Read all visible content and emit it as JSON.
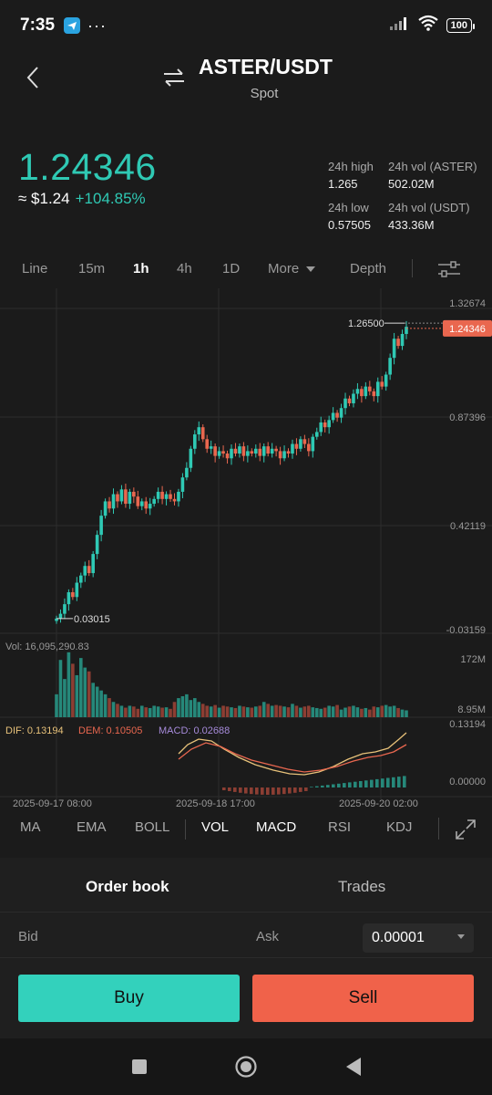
{
  "status": {
    "time": "7:35",
    "dots": "···",
    "battery": "100"
  },
  "header": {
    "pair": "ASTER/USDT",
    "market": "Spot"
  },
  "ticker": {
    "price": "1.24346",
    "approx": "≈ $1.24",
    "change": "+104.85%",
    "high_label": "24h high",
    "high": "1.265",
    "low_label": "24h low",
    "low": "0.57505",
    "vol_base_label": "24h vol (ASTER)",
    "vol_base": "502.02M",
    "vol_quote_label": "24h vol (USDT)",
    "vol_quote": "433.36M"
  },
  "timeframes": [
    "Line",
    "15m",
    "1h",
    "4h",
    "1D",
    "More",
    "Depth"
  ],
  "active_timeframe": "1h",
  "chart_data": {
    "type": "candlestick",
    "price_axis_labels": [
      "1.32674",
      "0.87396",
      "0.42119",
      "-0.03159"
    ],
    "current_price_tag": "1.24346",
    "high_marker": "1.26500",
    "low_marker": "0.03015",
    "volume_label": "Vol: 16,095,290.83",
    "volume_axis": [
      "172M",
      "8.95M"
    ],
    "macd": {
      "dif_label": "DIF: 0.13194",
      "dem_label": "DEM: 0.10505",
      "macd_label": "MACD: 0.02688"
    },
    "macd_axis": [
      "0.13194",
      "0.00000"
    ],
    "time_labels": [
      "2025-09-17 08:00",
      "2025-09-18 17:00",
      "2025-09-20 02:00"
    ],
    "closes": [
      0.03,
      0.05,
      0.09,
      0.14,
      0.12,
      0.18,
      0.21,
      0.25,
      0.22,
      0.3,
      0.38,
      0.46,
      0.52,
      0.49,
      0.55,
      0.52,
      0.57,
      0.51,
      0.56,
      0.54,
      0.5,
      0.52,
      0.49,
      0.51,
      0.53,
      0.56,
      0.53,
      0.55,
      0.53,
      0.52,
      0.56,
      0.62,
      0.66,
      0.74,
      0.8,
      0.83,
      0.78,
      0.74,
      0.75,
      0.71,
      0.73,
      0.72,
      0.7,
      0.74,
      0.72,
      0.75,
      0.71,
      0.73,
      0.72,
      0.74,
      0.71,
      0.75,
      0.72,
      0.74,
      0.73,
      0.7,
      0.73,
      0.72,
      0.76,
      0.74,
      0.78,
      0.76,
      0.73,
      0.79,
      0.81,
      0.85,
      0.83,
      0.86,
      0.89,
      0.87,
      0.91,
      0.95,
      0.93,
      0.97,
      0.99,
      0.96,
      1.0,
      0.98,
      0.96,
      1.02,
      1.0,
      1.05,
      1.12,
      1.2,
      1.17,
      1.22,
      1.25
    ],
    "volumes": [
      60,
      150,
      100,
      170,
      140,
      110,
      155,
      130,
      120,
      90,
      80,
      70,
      60,
      50,
      40,
      35,
      30,
      25,
      30,
      28,
      22,
      30,
      26,
      24,
      30,
      28,
      25,
      26,
      22,
      40,
      50,
      55,
      60,
      45,
      50,
      40,
      35,
      30,
      28,
      32,
      25,
      30,
      28,
      26,
      24,
      30,
      28,
      26,
      25,
      28,
      30,
      40,
      35,
      30,
      32,
      30,
      28,
      26,
      35,
      30,
      25,
      28,
      30,
      26,
      24,
      22,
      25,
      30,
      28,
      32,
      20,
      25,
      28,
      30,
      26,
      22,
      24,
      20,
      28,
      26,
      30,
      32,
      28,
      30,
      24,
      20,
      18
    ]
  },
  "indicators": [
    "MA",
    "EMA",
    "BOLL",
    "VOL",
    "MACD",
    "RSI",
    "KDJ"
  ],
  "active_indicators": [
    "VOL",
    "MACD"
  ],
  "book": {
    "tabs": [
      "Order book",
      "Trades"
    ],
    "bid": "Bid",
    "ask": "Ask",
    "precision": "0.00001"
  },
  "actions": {
    "buy": "Buy",
    "sell": "Sell"
  },
  "colors": {
    "up": "#2fc9b4",
    "down": "#e9674f",
    "accent_buy": "#33d1bc",
    "accent_sell": "#f0624a"
  }
}
